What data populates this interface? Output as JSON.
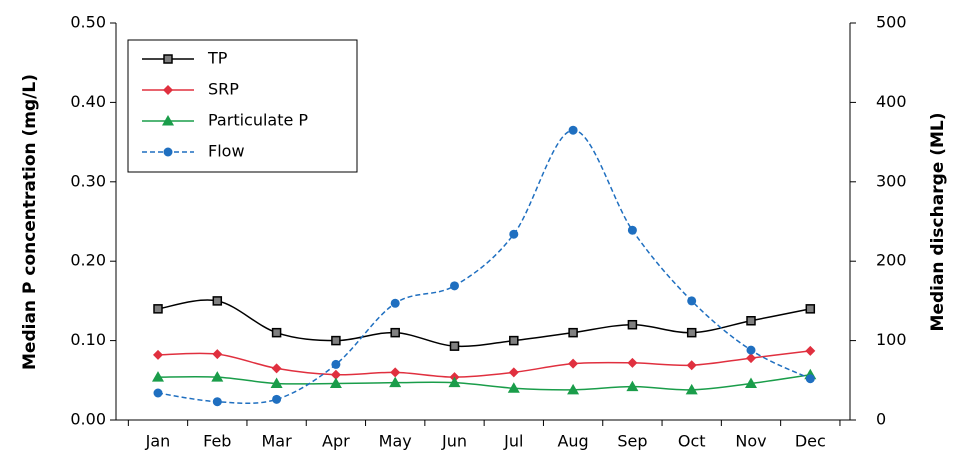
{
  "chart_data": {
    "type": "line",
    "y_label": "Median P concentration (mg/L)",
    "y2_label": "Median discharge (ML)",
    "categories": [
      "Jan",
      "Feb",
      "Mar",
      "Apr",
      "May",
      "Jun",
      "Jul",
      "Aug",
      "Sep",
      "Oct",
      "Nov",
      "Dec"
    ],
    "ylim": [
      0,
      0.5
    ],
    "yticks": [
      {
        "value": 0,
        "label": "0.00"
      },
      {
        "value": 0.1,
        "label": "0.10"
      },
      {
        "value": 0.2,
        "label": "0.20"
      },
      {
        "value": 0.3,
        "label": "0.30"
      },
      {
        "value": 0.4,
        "label": "0.40"
      },
      {
        "value": 0.5,
        "label": "0.50"
      }
    ],
    "y2lim": [
      0,
      500
    ],
    "y2ticks": [
      0,
      100,
      200,
      300,
      400,
      500
    ],
    "legend": "upper left",
    "series": [
      {
        "name": "TP",
        "color": "#000000",
        "marker": "square",
        "dash": false,
        "values": [
          0.14,
          0.15,
          0.11,
          0.1,
          0.11,
          0.093,
          0.1,
          0.11,
          0.12,
          0.11,
          0.125,
          0.14
        ]
      },
      {
        "name": "SRP",
        "color": "#e0303f",
        "marker": "diamond",
        "dash": false,
        "values": [
          0.082,
          0.083,
          0.065,
          0.057,
          0.06,
          0.054,
          0.06,
          0.071,
          0.072,
          0.069,
          0.078,
          0.087
        ]
      },
      {
        "name": "Particulate P",
        "color": "#1a9d4a",
        "marker": "triangle",
        "dash": false,
        "values": [
          0.054,
          0.054,
          0.046,
          0.046,
          0.047,
          0.047,
          0.04,
          0.038,
          0.042,
          0.038,
          0.046,
          0.057
        ]
      },
      {
        "name": "Flow",
        "color": "#1f6fc0",
        "marker": "circle",
        "dash": true,
        "axis": "y2",
        "values": [
          34,
          23,
          26,
          70,
          147,
          169,
          234,
          365,
          239,
          150,
          88,
          52
        ]
      }
    ]
  }
}
